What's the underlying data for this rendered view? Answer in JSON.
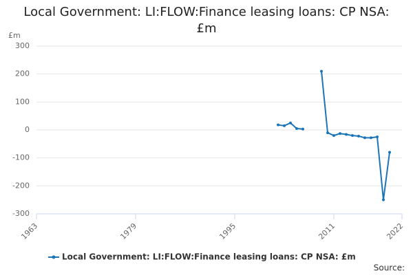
{
  "chart_data": {
    "type": "line",
    "title": "Local Government: LI:FLOW:Finance leasing loans: CP NSA: £m",
    "y_label": "£m",
    "source": "Source:",
    "x": [
      2002,
      2003,
      2004,
      2005,
      2006,
      2007,
      2008,
      2009,
      2010,
      2011,
      2012,
      2013,
      2014,
      2015,
      2016,
      2017,
      2018,
      2019,
      2020
    ],
    "series": [
      {
        "name": "Local Government: LI:FLOW:Finance leasing loans: CP NSA: £m",
        "color": "#1a75b8",
        "values": [
          18,
          15,
          25,
          5,
          3,
          null,
          null,
          210,
          -10,
          -20,
          -13,
          -16,
          -20,
          -22,
          -28,
          -28,
          -25,
          -250,
          -80
        ]
      }
    ],
    "xlim": [
      1963,
      2022
    ],
    "xticks": [
      1963,
      1979,
      1995,
      2011,
      2022
    ],
    "ylim": [
      -300,
      300
    ],
    "yticks": [
      -300,
      -200,
      -100,
      0,
      100,
      200,
      300
    ],
    "grid": true,
    "legend": "bottom"
  }
}
